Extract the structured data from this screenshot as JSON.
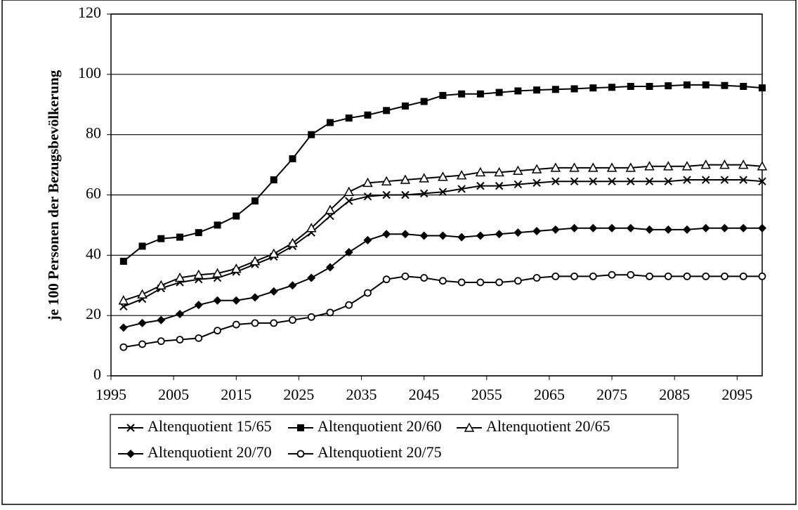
{
  "chart_data": {
    "type": "line",
    "ylabel": "je 100 Personen der Bezugsbevölkerung",
    "x": [
      1997,
      2000,
      2003,
      2006,
      2009,
      2012,
      2015,
      2018,
      2021,
      2024,
      2027,
      2030,
      2033,
      2036,
      2039,
      2042,
      2045,
      2048,
      2051,
      2054,
      2057,
      2060,
      2063,
      2066,
      2069,
      2072,
      2075,
      2078,
      2081,
      2084,
      2087,
      2090,
      2093,
      2096,
      2099
    ],
    "xlim": [
      1995,
      2099
    ],
    "xticks": [
      1995,
      2005,
      2015,
      2025,
      2035,
      2045,
      2055,
      2065,
      2075,
      2085,
      2095
    ],
    "ylim": [
      0,
      120
    ],
    "yticks": [
      0,
      20,
      40,
      60,
      80,
      100,
      120
    ],
    "grid": true,
    "legend": "bottom",
    "series": [
      {
        "name": "Altenquotient 15/65",
        "color": "#000000",
        "marker": "x",
        "values": [
          23,
          25.5,
          29,
          31,
          32,
          32.5,
          34.5,
          37,
          39.5,
          43,
          47.5,
          53,
          58,
          59.5,
          60,
          60,
          60.5,
          61,
          62,
          63,
          63,
          63.5,
          64,
          64.5,
          64.5,
          64.5,
          64.5,
          64.5,
          64.5,
          64.5,
          65,
          65,
          65,
          65,
          64.5
        ]
      },
      {
        "name": "Altenquotient 20/60",
        "color": "#000000",
        "marker": "square",
        "values": [
          38,
          43,
          45.5,
          46,
          47.5,
          50,
          53,
          58,
          65,
          72,
          80,
          84,
          85.5,
          86.5,
          88,
          89.5,
          91,
          93,
          93.5,
          93.5,
          94,
          94.5,
          94.8,
          95,
          95.2,
          95.5,
          95.7,
          96,
          96,
          96.2,
          96.5,
          96.5,
          96.3,
          96,
          95.5
        ]
      },
      {
        "name": "Altenquotient 20/65",
        "color": "#000000",
        "marker": "triangle",
        "values": [
          25,
          27,
          30,
          32.5,
          33.5,
          34,
          35.5,
          38,
          40.5,
          44,
          49,
          55,
          61,
          64,
          64.5,
          65,
          65.5,
          66,
          66.5,
          67.5,
          67.5,
          68,
          68.5,
          69,
          69,
          69,
          69,
          69,
          69.5,
          69.5,
          69.5,
          70,
          70,
          70,
          69.5
        ]
      },
      {
        "name": "Altenquotient 20/70",
        "color": "#000000",
        "marker": "diamond",
        "values": [
          16,
          17.5,
          18.5,
          20.5,
          23.5,
          25,
          25,
          26,
          28,
          30,
          32.5,
          36,
          41,
          45,
          47,
          47,
          46.5,
          46.5,
          46,
          46.5,
          47,
          47.5,
          48,
          48.5,
          49,
          49,
          49,
          49,
          48.5,
          48.5,
          48.5,
          49,
          49,
          49,
          49
        ]
      },
      {
        "name": "Altenquotient 20/75",
        "color": "#000000",
        "marker": "circle",
        "values": [
          9.5,
          10.5,
          11.5,
          12,
          12.5,
          15,
          17,
          17.5,
          17.5,
          18.5,
          19.5,
          21,
          23.5,
          27.5,
          32,
          33,
          32.5,
          31.5,
          31,
          31,
          31,
          31.5,
          32.5,
          33,
          33,
          33,
          33.5,
          33.5,
          33,
          33,
          33,
          33,
          33,
          33,
          33
        ]
      }
    ]
  }
}
